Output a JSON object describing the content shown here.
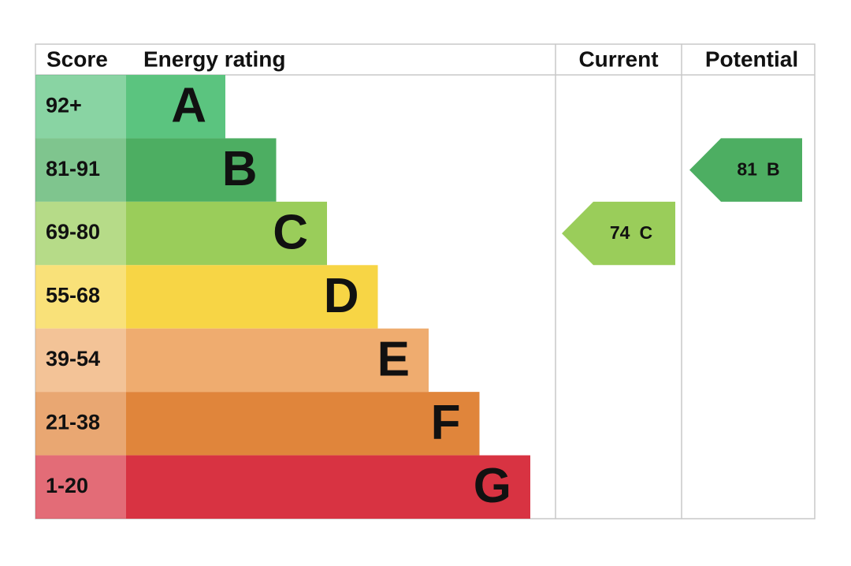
{
  "chart_data": {
    "type": "epc",
    "headers": [
      "Score",
      "Energy rating",
      "Current",
      "Potential"
    ],
    "bands": [
      {
        "score": "92+",
        "letter": "A",
        "color": "#5bc47f"
      },
      {
        "score": "81-91",
        "letter": "B",
        "color": "#4dae62"
      },
      {
        "score": "69-80",
        "letter": "C",
        "color": "#9acd5a"
      },
      {
        "score": "55-68",
        "letter": "D",
        "color": "#f7d545"
      },
      {
        "score": "39-54",
        "letter": "E",
        "color": "#efac6f"
      },
      {
        "score": "21-38",
        "letter": "F",
        "color": "#e0853b"
      },
      {
        "score": "1-20",
        "letter": "G",
        "color": "#d83342"
      }
    ],
    "current": {
      "value": 74,
      "letter": "C"
    },
    "potential": {
      "value": 81,
      "letter": "B"
    }
  }
}
